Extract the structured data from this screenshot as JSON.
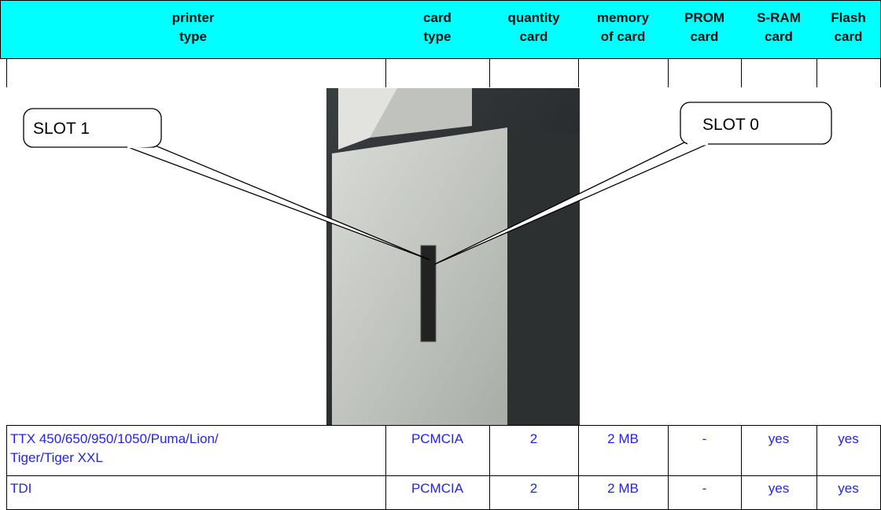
{
  "table": {
    "header": [
      [
        "printer",
        "type"
      ],
      [
        "card",
        "type"
      ],
      [
        "quantity",
        "card"
      ],
      [
        "memory",
        "of card"
      ],
      [
        "PROM",
        "card"
      ],
      [
        "S-RAM",
        "card"
      ],
      [
        "Flash",
        "card"
      ]
    ],
    "rows": [
      [
        [
          "TTX 450/650/950/1050/Puma/Lion/",
          "Tiger/Tiger XXL"
        ],
        [
          "PCMCIA"
        ],
        [
          "2"
        ],
        [
          "2 MB"
        ],
        [
          "-"
        ],
        [
          "yes"
        ],
        [
          "yes"
        ]
      ],
      [
        [
          "TDI"
        ],
        [
          "PCMCIA"
        ],
        [
          "2"
        ],
        [
          "2 MB"
        ],
        [
          "-"
        ],
        [
          "yes"
        ],
        [
          "yes"
        ]
      ]
    ]
  },
  "callouts": [
    "SLOT 1",
    "SLOT 0"
  ]
}
